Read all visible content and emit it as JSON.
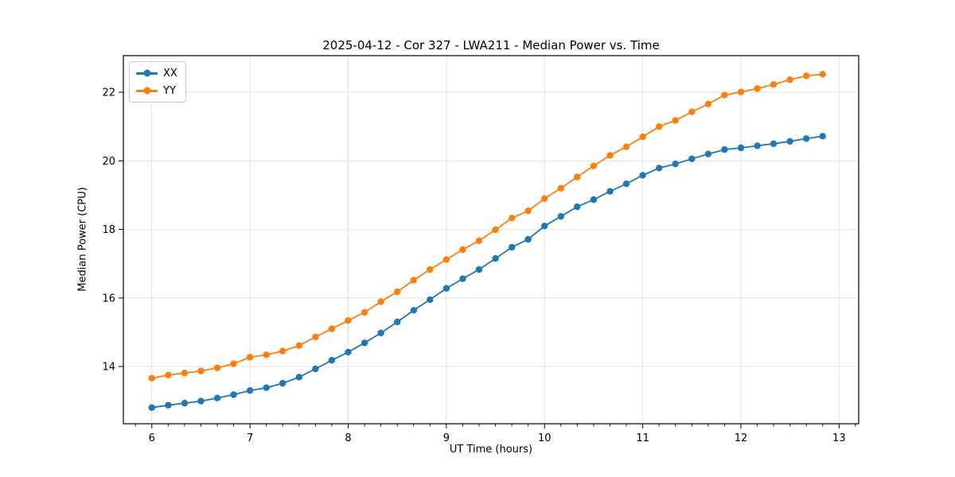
{
  "chart_data": {
    "type": "line",
    "title": "2025-04-12 - Cor 327 - LWA211 - Median Power vs. Time",
    "xlabel": "UT Time (hours)",
    "ylabel": "Median Power (CPU)",
    "xlim": [
      5.71,
      13.2
    ],
    "ylim": [
      12.33,
      23.07
    ],
    "x_ticks": [
      6,
      7,
      8,
      9,
      10,
      11,
      12,
      13
    ],
    "y_ticks": [
      14,
      16,
      18,
      20,
      22
    ],
    "x_minor_ticks_per_unit": 6,
    "grid": true,
    "grid_color": "#e3e3e3",
    "legend_position": "upper-left",
    "x": [
      6,
      6.167,
      6.333,
      6.5,
      6.667,
      6.833,
      7,
      7.167,
      7.333,
      7.5,
      7.667,
      7.833,
      8,
      8.167,
      8.333,
      8.5,
      8.667,
      8.833,
      9,
      9.167,
      9.333,
      9.5,
      9.667,
      9.833,
      10,
      10.167,
      10.333,
      10.5,
      10.667,
      10.833,
      11,
      11.167,
      11.333,
      11.5,
      11.667,
      11.833,
      12,
      12.167,
      12.333,
      12.5,
      12.667,
      12.833
    ],
    "series": [
      {
        "name": "XX",
        "color": "#1f77b4",
        "values": [
          12.8,
          12.87,
          12.93,
          12.99,
          13.08,
          13.18,
          13.3,
          13.38,
          13.51,
          13.69,
          13.93,
          14.18,
          14.42,
          14.69,
          14.98,
          15.3,
          15.64,
          15.95,
          16.28,
          16.56,
          16.83,
          17.15,
          17.48,
          17.71,
          18.1,
          18.38,
          18.66,
          18.87,
          19.11,
          19.33,
          19.58,
          19.79,
          19.91,
          20.06,
          20.2,
          20.33,
          20.38,
          20.44,
          20.5,
          20.57,
          20.65,
          20.72
        ]
      },
      {
        "name": "YY",
        "color": "#ff7f0e",
        "values": [
          13.66,
          13.75,
          13.81,
          13.87,
          13.96,
          14.08,
          14.27,
          14.34,
          14.45,
          14.61,
          14.86,
          15.1,
          15.34,
          15.58,
          15.89,
          16.18,
          16.52,
          16.83,
          17.12,
          17.41,
          17.67,
          17.99,
          18.33,
          18.54,
          18.9,
          19.2,
          19.53,
          19.85,
          20.16,
          20.41,
          20.7,
          21.0,
          21.18,
          21.43,
          21.66,
          21.92,
          22.01,
          22.11,
          22.23,
          22.37,
          22.48,
          22.53
        ]
      }
    ]
  }
}
